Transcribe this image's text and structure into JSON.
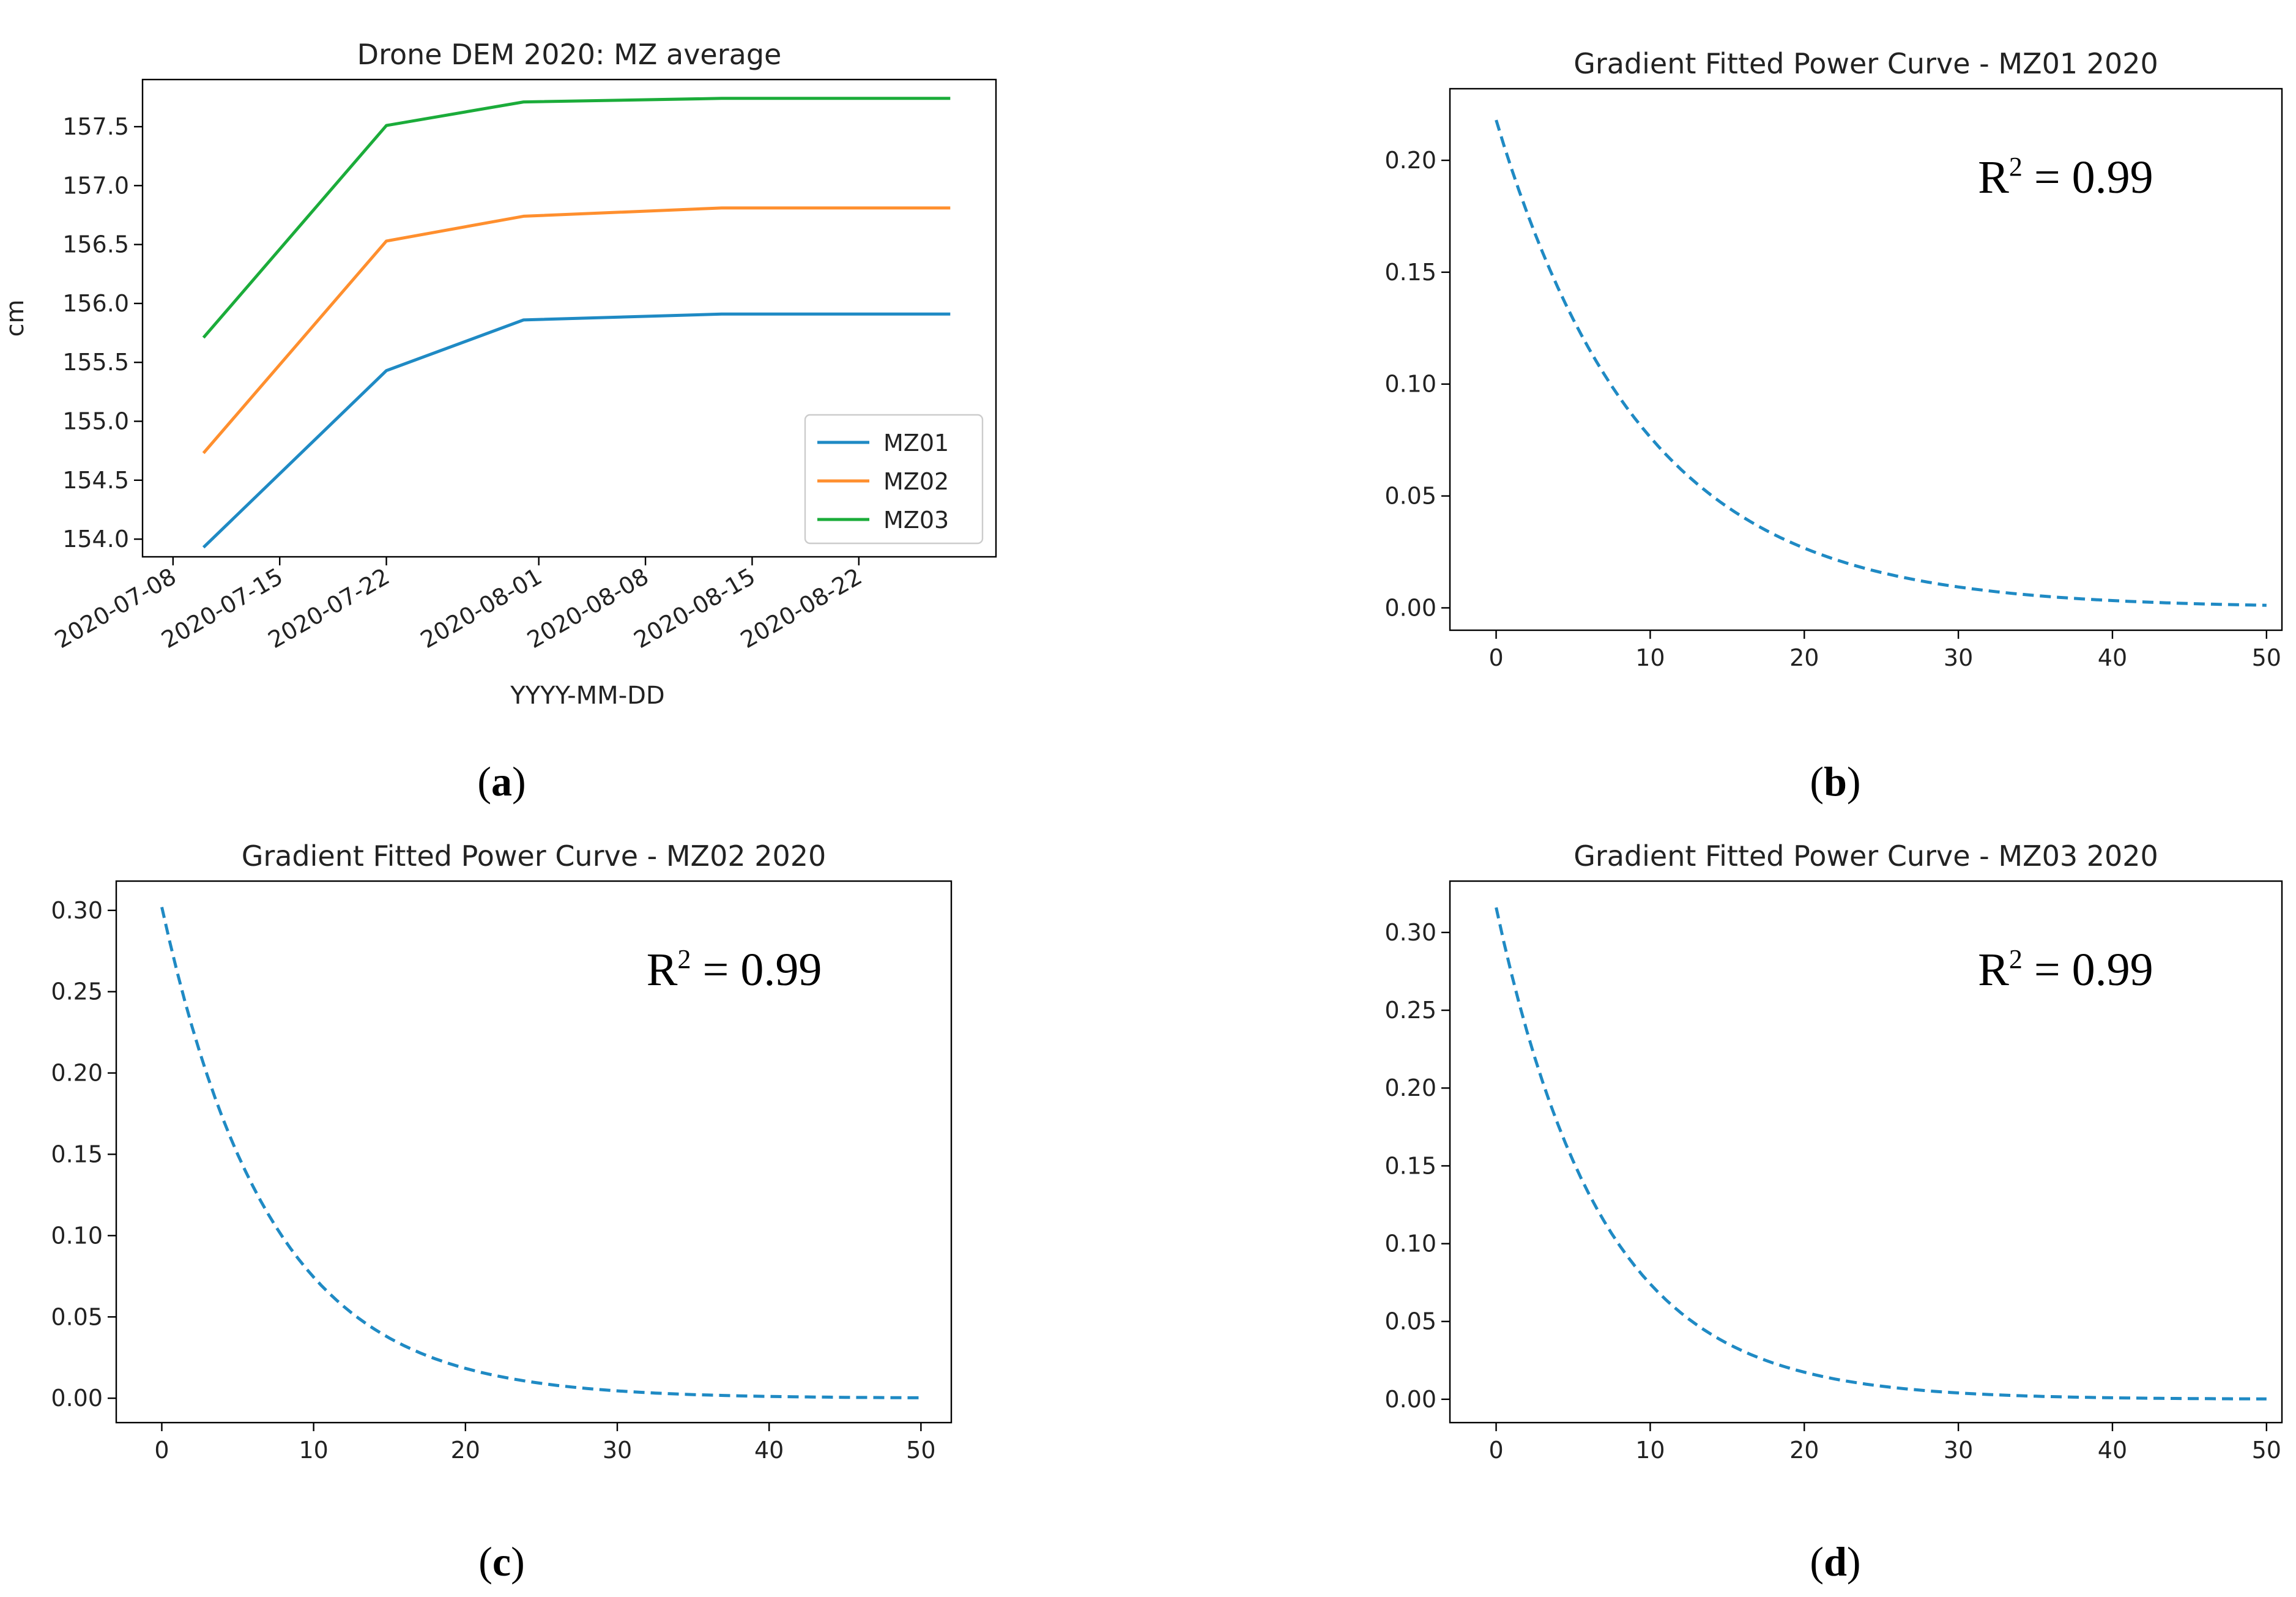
{
  "chart_data": [
    {
      "id": "a",
      "type": "line",
      "title": "Drone DEM 2020: MZ average",
      "xlabel": "YYYY-MM-DD",
      "ylabel": "cm",
      "caption": {
        "open": "(",
        "letter": "a",
        "close": ")"
      },
      "x": [
        "2020-07-10",
        "2020-07-22",
        "2020-07-31",
        "2020-08-13",
        "2020-08-28"
      ],
      "xticks": [
        "2020-07-08",
        "2020-07-15",
        "2020-07-22",
        "2020-08-01",
        "2020-08-08",
        "2020-08-15",
        "2020-08-22"
      ],
      "yticks": [
        "154.0",
        "154.5",
        "155.0",
        "155.5",
        "156.0",
        "156.5",
        "157.0",
        "157.5"
      ],
      "ylim": [
        153.85,
        157.9
      ],
      "legend_position": "lower-right",
      "series": [
        {
          "name": "MZ01",
          "color": "#1f8ac4",
          "values": [
            153.93,
            155.43,
            155.86,
            155.91,
            155.91
          ]
        },
        {
          "name": "MZ02",
          "color": "#ff8f2e",
          "values": [
            154.73,
            156.53,
            156.74,
            156.81,
            156.81
          ]
        },
        {
          "name": "MZ03",
          "color": "#1bac3a",
          "values": [
            155.71,
            157.51,
            157.71,
            157.74,
            157.74
          ]
        }
      ]
    },
    {
      "id": "b",
      "type": "line",
      "title": "Gradient Fitted Power Curve - MZ01 2020",
      "xlabel": "",
      "ylabel": "",
      "caption": {
        "open": "(",
        "letter": "b",
        "close": ")"
      },
      "annotation": {
        "base": "R",
        "sup": "2",
        "rest": " = 0.99"
      },
      "line_color": "#1f8ac4",
      "a": 0.218,
      "k": 0.105,
      "xlim": [
        -3,
        51
      ],
      "ylim": [
        -0.01,
        0.232
      ],
      "xticks": [
        "0",
        "10",
        "20",
        "30",
        "40",
        "50"
      ],
      "yticks": [
        "0.00",
        "0.05",
        "0.10",
        "0.15",
        "0.20"
      ]
    },
    {
      "id": "c",
      "type": "line",
      "title": "Gradient Fitted Power Curve - MZ02 2020",
      "xlabel": "",
      "ylabel": "",
      "caption": {
        "open": "(",
        "letter": "c",
        "close": ")"
      },
      "annotation": {
        "base": "R",
        "sup": "2",
        "rest": " = 0.99"
      },
      "line_color": "#1f8ac4",
      "a": 0.302,
      "k": 0.14,
      "xlim": [
        -3,
        52
      ],
      "ylim": [
        -0.015,
        0.318
      ],
      "xticks": [
        "0",
        "10",
        "20",
        "30",
        "40",
        "50"
      ],
      "yticks": [
        "0.00",
        "0.05",
        "0.10",
        "0.15",
        "0.20",
        "0.25",
        "0.30"
      ]
    },
    {
      "id": "d",
      "type": "line",
      "title": "Gradient Fitted Power Curve - MZ03 2020",
      "xlabel": "",
      "ylabel": "",
      "caption": {
        "open": "(",
        "letter": "d",
        "close": ")"
      },
      "annotation": {
        "base": "R",
        "sup": "2",
        "rest": " = 0.99"
      },
      "line_color": "#1f8ac4",
      "a": 0.316,
      "k": 0.145,
      "xlim": [
        -3,
        51
      ],
      "ylim": [
        -0.015,
        0.333
      ],
      "xticks": [
        "0",
        "10",
        "20",
        "30",
        "40",
        "50"
      ],
      "yticks": [
        "0.00",
        "0.05",
        "0.10",
        "0.15",
        "0.20",
        "0.25",
        "0.30"
      ]
    }
  ]
}
